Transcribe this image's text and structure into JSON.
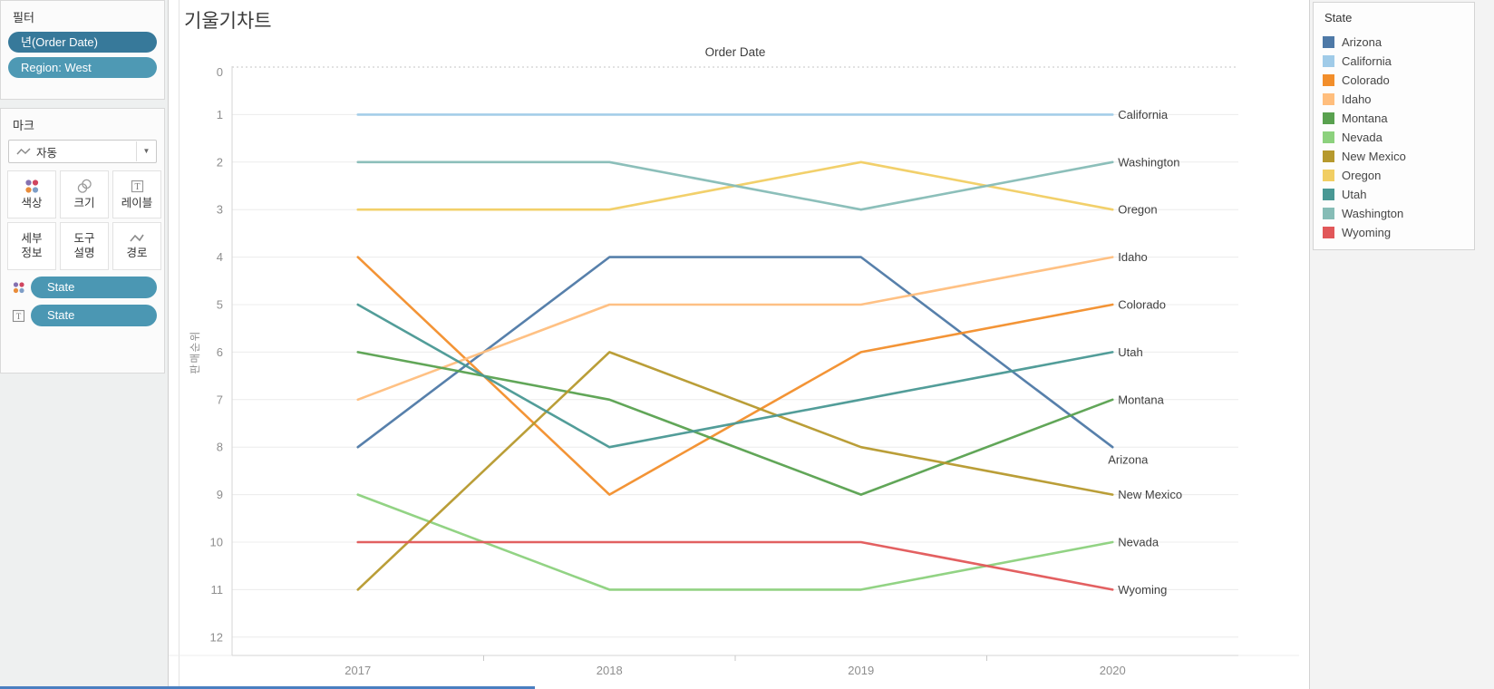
{
  "sidebar": {
    "filter": {
      "title": "필터",
      "pills": [
        {
          "label": "년(Order Date)",
          "color": "#37799a"
        },
        {
          "label": "Region: West",
          "color": "#4e99b4"
        }
      ]
    },
    "marks": {
      "title": "마크",
      "dropdown": {
        "label": "자동",
        "icon": "line-mark-icon"
      },
      "buttons": [
        {
          "label": "색상",
          "icon": "color-icon"
        },
        {
          "label": "크기",
          "icon": "size-icon"
        },
        {
          "label": "레이블",
          "icon": "label-icon"
        },
        {
          "label": "세부\n정보",
          "icon": null
        },
        {
          "label": "도구\n설명",
          "icon": null
        },
        {
          "label": "경로",
          "icon": "path-icon"
        }
      ],
      "shelf_pills": [
        {
          "icon": "color-icon",
          "label": "State"
        },
        {
          "icon": "text-icon",
          "label": "State"
        }
      ],
      "pill_color": "#4b97b3"
    }
  },
  "legend": {
    "title": "State",
    "items": [
      {
        "label": "Arizona",
        "color": "#4e79a7"
      },
      {
        "label": "California",
        "color": "#a0cbe8"
      },
      {
        "label": "Colorado",
        "color": "#f28e2b"
      },
      {
        "label": "Idaho",
        "color": "#ffbe7d"
      },
      {
        "label": "Montana",
        "color": "#59a14f"
      },
      {
        "label": "Nevada",
        "color": "#8cd17d"
      },
      {
        "label": "New Mexico",
        "color": "#b6992d"
      },
      {
        "label": "Oregon",
        "color": "#f1ce63"
      },
      {
        "label": "Utah",
        "color": "#499894"
      },
      {
        "label": "Washington",
        "color": "#86bcb6"
      },
      {
        "label": "Wyoming",
        "color": "#e15759"
      }
    ]
  },
  "chart_data": {
    "type": "line",
    "title": "기울기차트",
    "column_header": "Order Date",
    "xlabel": "Order Date",
    "ylabel": "판매순위",
    "x": [
      2017,
      2018,
      2019,
      2020
    ],
    "yticks": [
      0,
      1,
      2,
      3,
      4,
      5,
      6,
      7,
      8,
      9,
      10,
      11,
      12
    ],
    "ylim": [
      0,
      12
    ],
    "y_inverted": true,
    "grid": true,
    "zero_line_dashed": true,
    "legend_position": "right",
    "series": [
      {
        "name": "Arizona",
        "color": "#4e79a7",
        "values": [
          8,
          4,
          4,
          8
        ],
        "end_label_offset": [
          -11,
          14
        ]
      },
      {
        "name": "California",
        "color": "#a0cbe8",
        "values": [
          1,
          1,
          1,
          1
        ]
      },
      {
        "name": "Colorado",
        "color": "#f28e2b",
        "values": [
          4,
          9,
          6,
          5
        ]
      },
      {
        "name": "Idaho",
        "color": "#ffbe7d",
        "values": [
          7,
          5,
          5,
          4
        ]
      },
      {
        "name": "Montana",
        "color": "#59a14f",
        "values": [
          6,
          7,
          9,
          7
        ]
      },
      {
        "name": "Nevada",
        "color": "#8cd17d",
        "values": [
          9,
          11,
          11,
          10
        ]
      },
      {
        "name": "New Mexico",
        "color": "#b6992d",
        "values": [
          11,
          6,
          8,
          9
        ]
      },
      {
        "name": "Oregon",
        "color": "#f1ce63",
        "values": [
          3,
          3,
          2,
          3
        ]
      },
      {
        "name": "Utah",
        "color": "#499894",
        "values": [
          5,
          8,
          7,
          6
        ]
      },
      {
        "name": "Washington",
        "color": "#86bcb6",
        "values": [
          2,
          2,
          3,
          2
        ]
      },
      {
        "name": "Wyoming",
        "color": "#e15759",
        "values": [
          10,
          10,
          10,
          11
        ]
      }
    ]
  }
}
